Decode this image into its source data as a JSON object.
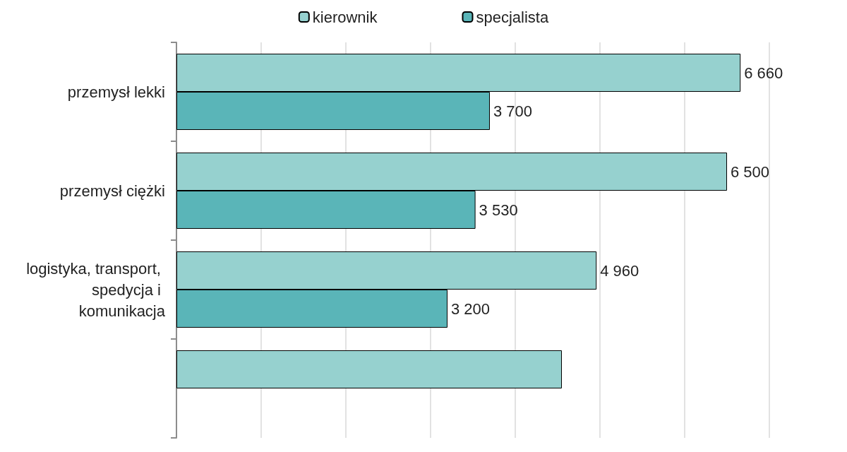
{
  "chart_data": {
    "type": "bar",
    "orientation": "horizontal",
    "categories": [
      "przemysł lekki",
      "przemysł ciężki",
      "logistyka, transport, spedycja i komunikacja",
      null
    ],
    "series": [
      {
        "name": "kierownik",
        "color": "#96d1cf",
        "values": [
          6660,
          6500,
          4960,
          4550
        ],
        "value_labels": [
          "6 660",
          "6 500",
          "4 960",
          null
        ]
      },
      {
        "name": "specjalista",
        "color": "#5ab5b8",
        "values": [
          3700,
          3530,
          3200,
          null
        ],
        "value_labels": [
          "3 700",
          "3 530",
          "3 200",
          null
        ]
      }
    ],
    "xlim": [
      0,
      7000
    ],
    "xticks": [
      {
        "value": 0,
        "label": null
      },
      {
        "value": 1000,
        "label": null
      },
      {
        "value": 2000,
        "label": null
      },
      {
        "value": 3000,
        "label": null
      },
      {
        "value": 4000,
        "label": null
      },
      {
        "value": 5000,
        "label": null
      },
      {
        "value": 6000,
        "label": null
      },
      {
        "value": 7000,
        "label": null
      }
    ],
    "tick_labels": "y",
    "grid": "x",
    "legend": "top"
  }
}
